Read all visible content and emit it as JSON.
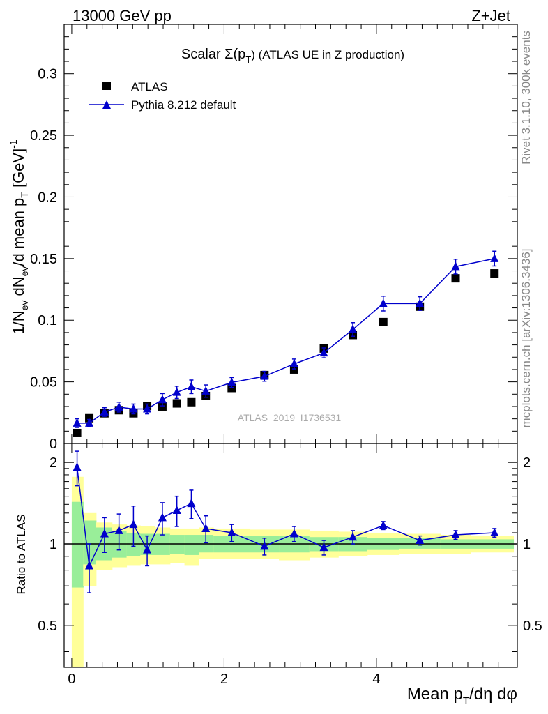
{
  "header": {
    "left_label": "13000 GeV pp",
    "right_label": "Z+Jet"
  },
  "side_labels": {
    "rivet": "Rivet 3.1.10,  300k events",
    "mcplots": "mcplots.cern.ch [arXiv:1306.3436]"
  },
  "chart_data": [
    {
      "type": "scatter",
      "title_main": "Scalar Σ(p",
      "title_sub": "T",
      "title_rest": ") (ATLAS UE in Z production)",
      "ylabel": "1/N_ev dN_ev/d mean p_T [GeV]^-1",
      "xlabel": "Mean p_T/dη dφ",
      "watermark": "ATLAS_2019_I1736531",
      "xlim": [
        -0.1,
        5.85
      ],
      "ylim": [
        0,
        0.34
      ],
      "y_ticks": [
        0,
        0.05,
        0.1,
        0.15,
        0.2,
        0.25,
        0.3
      ],
      "y_tick_labels": [
        "0",
        "0.05",
        "0.1",
        "0.15",
        "0.2",
        "0.25",
        "0.3"
      ],
      "legend": {
        "position": "top-left",
        "entries": [
          {
            "label": "ATLAS",
            "marker": "square",
            "color": "#000000"
          },
          {
            "label": "Pythia 8.212 default",
            "marker": "triangle",
            "color": "#0000cc"
          }
        ]
      },
      "series": [
        {
          "name": "ATLAS",
          "x": [
            0.07,
            0.23,
            0.43,
            0.62,
            0.81,
            0.99,
            1.19,
            1.38,
            1.57,
            1.76,
            2.1,
            2.53,
            2.92,
            3.31,
            3.69,
            4.09,
            4.57,
            5.04,
            5.55
          ],
          "y": [
            0.0085,
            0.0205,
            0.0245,
            0.027,
            0.0245,
            0.0305,
            0.03,
            0.0325,
            0.0335,
            0.0385,
            0.045,
            0.0555,
            0.06,
            0.077,
            0.088,
            0.0985,
            0.111,
            0.134,
            0.138
          ]
        },
        {
          "name": "Pythia 8.212 default",
          "x": [
            0.07,
            0.23,
            0.43,
            0.62,
            0.81,
            0.99,
            1.19,
            1.38,
            1.57,
            1.76,
            2.1,
            2.53,
            2.92,
            3.31,
            3.69,
            4.09,
            4.57,
            5.04,
            5.55
          ],
          "y": [
            0.0165,
            0.0165,
            0.0255,
            0.0295,
            0.028,
            0.028,
            0.0355,
            0.0415,
            0.046,
            0.0425,
            0.0495,
            0.0545,
            0.0645,
            0.0735,
            0.0925,
            0.1135,
            0.1135,
            0.1435,
            0.15
          ],
          "err": [
            0.0035,
            0.003,
            0.0035,
            0.004,
            0.004,
            0.004,
            0.005,
            0.005,
            0.0055,
            0.005,
            0.004,
            0.004,
            0.004,
            0.004,
            0.0055,
            0.006,
            0.0055,
            0.006,
            0.006
          ]
        }
      ]
    },
    {
      "type": "scatter",
      "ylabel": "Ratio to ATLAS",
      "xlabel": "Mean p_T/dη dφ",
      "xlim": [
        -0.1,
        5.85
      ],
      "ylim": [
        0.35,
        2.35
      ],
      "y_ticks": [
        0.5,
        1,
        2
      ],
      "y_tick_labels": [
        "0.5",
        "1",
        "2"
      ],
      "x_ticks": [
        0,
        2,
        4
      ],
      "x_tick_labels": [
        "0",
        "2",
        "4"
      ],
      "reference_line": 1,
      "bands": {
        "bin_edges": [
          0.0,
          0.15,
          0.32,
          0.53,
          0.72,
          0.9,
          1.09,
          1.29,
          1.48,
          1.67,
          1.86,
          2.34,
          2.72,
          3.12,
          3.5,
          3.88,
          4.3,
          4.84,
          5.24,
          5.8
        ],
        "green_low": [
          0.69,
          0.84,
          0.87,
          0.89,
          0.9,
          0.91,
          0.91,
          0.92,
          0.91,
          0.93,
          0.93,
          0.93,
          0.93,
          0.94,
          0.94,
          0.95,
          0.96,
          0.96,
          0.96
        ],
        "green_high": [
          1.43,
          1.22,
          1.15,
          1.12,
          1.1,
          1.09,
          1.09,
          1.08,
          1.08,
          1.08,
          1.07,
          1.07,
          1.07,
          1.06,
          1.06,
          1.05,
          1.05,
          1.04,
          1.04
        ],
        "yellow_low": [
          0.35,
          0.7,
          0.8,
          0.82,
          0.83,
          0.84,
          0.84,
          0.85,
          0.83,
          0.88,
          0.88,
          0.88,
          0.87,
          0.89,
          0.9,
          0.91,
          0.92,
          0.92,
          0.93
        ],
        "yellow_high": [
          1.77,
          1.3,
          1.2,
          1.18,
          1.17,
          1.16,
          1.15,
          1.14,
          1.14,
          1.15,
          1.14,
          1.13,
          1.13,
          1.12,
          1.11,
          1.1,
          1.09,
          1.08,
          1.07
        ]
      },
      "series": [
        {
          "name": "Pythia 8.212 / ATLAS",
          "x": [
            0.07,
            0.23,
            0.43,
            0.62,
            0.81,
            0.99,
            1.19,
            1.38,
            1.57,
            1.76,
            2.1,
            2.53,
            2.92,
            3.31,
            3.69,
            4.09,
            4.57,
            5.04,
            5.55
          ],
          "y": [
            1.92,
            0.83,
            1.09,
            1.12,
            1.18,
            0.95,
            1.25,
            1.33,
            1.41,
            1.14,
            1.1,
            0.98,
            1.09,
            0.97,
            1.06,
            1.17,
            1.03,
            1.08,
            1.1
          ],
          "err": [
            0.28,
            0.17,
            0.16,
            0.17,
            0.2,
            0.12,
            0.17,
            0.17,
            0.17,
            0.13,
            0.08,
            0.07,
            0.07,
            0.06,
            0.06,
            0.04,
            0.04,
            0.04,
            0.04
          ]
        }
      ]
    }
  ]
}
